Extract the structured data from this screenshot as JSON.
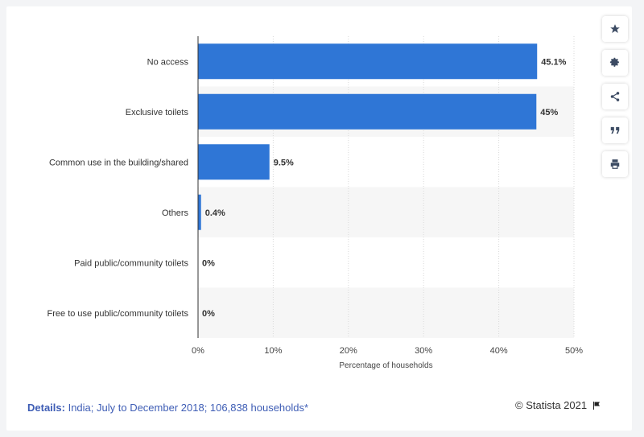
{
  "toolbar": {
    "icons": [
      "star-icon",
      "gear-icon",
      "share-icon",
      "quote-icon",
      "print-icon"
    ]
  },
  "footer": {
    "details_label": "Details:",
    "details_text": "India; July to December 2018; 106,838 households*",
    "credit": "© Statista 2021"
  },
  "colors": {
    "bar": "#2f76d6",
    "band": "#f6f6f6",
    "axis": "#333333"
  },
  "chart_data": {
    "type": "bar",
    "orientation": "horizontal",
    "categories": [
      "No access",
      "Exclusive toilets",
      "Common use in the building/shared",
      "Others",
      "Paid public/community toilets",
      "Free to use public/community toilets"
    ],
    "values": [
      45.1,
      45,
      9.5,
      0.4,
      0,
      0
    ],
    "value_labels": [
      "45.1%",
      "45%",
      "9.5%",
      "0.4%",
      "0%",
      "0%"
    ],
    "xlabel": "Percentage of households",
    "ylabel": "",
    "xlim": [
      0,
      50
    ],
    "x_ticks": [
      0,
      10,
      20,
      30,
      40,
      50
    ],
    "x_tick_labels": [
      "0%",
      "10%",
      "20%",
      "30%",
      "40%",
      "50%"
    ],
    "grid": true,
    "legend": "none"
  }
}
